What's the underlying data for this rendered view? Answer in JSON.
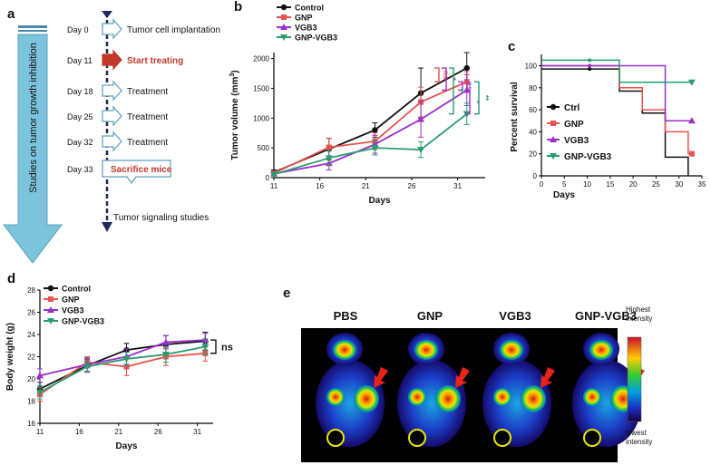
{
  "panels": {
    "a": "a",
    "b": "b",
    "c": "c",
    "d": "d",
    "e": "e"
  },
  "timeline": {
    "arrow_label": "Studies on tumor growth inhibition",
    "events": [
      {
        "day": "Day 0",
        "label": "Tumor cell implantation",
        "highlight": false
      },
      {
        "day": "Day 11",
        "label": "Start treating",
        "highlight": true
      },
      {
        "day": "Day 18",
        "label": "Treatment",
        "highlight": false
      },
      {
        "day": "Day 25",
        "label": "Treatment",
        "highlight": false
      },
      {
        "day": "Day 32",
        "label": "Treatment",
        "highlight": false
      },
      {
        "day": "Day 33",
        "label": "Sacrifice mice",
        "boxed": true
      }
    ],
    "footer": "Tumor signaling studies",
    "colors": {
      "arrow": "#7cc4dc",
      "highlight": "#c0392b",
      "timeline": "#1a2a5a"
    }
  },
  "series_colors": {
    "Control": "#111111",
    "GNP": "#e8524f",
    "VGB3": "#9b2fc9",
    "GNP-VGB3": "#2a9d6f"
  },
  "chart_data": [
    {
      "panel": "b",
      "type": "line",
      "xlabel": "Days",
      "ylabel": "Tumor volume (mm",
      "ylabel_sup": "3",
      "ylabel_close": ")",
      "xticks": [
        11,
        16,
        21,
        26,
        31
      ],
      "yticks": [
        0,
        500,
        1000,
        1500,
        2000
      ],
      "xlim": [
        11,
        34
      ],
      "ylim": [
        0,
        2100
      ],
      "x": [
        11,
        17,
        22,
        27,
        32
      ],
      "series": [
        {
          "name": "Control",
          "values": [
            90,
            480,
            800,
            1420,
            1840
          ],
          "err": [
            40,
            180,
            120,
            420,
            260
          ]
        },
        {
          "name": "GNP",
          "values": [
            75,
            510,
            610,
            1270,
            1610
          ],
          "err": [
            35,
            150,
            140,
            250,
            170
          ]
        },
        {
          "name": "VGB3",
          "values": [
            65,
            240,
            560,
            980,
            1470
          ],
          "err": [
            30,
            110,
            150,
            300,
            260
          ]
        },
        {
          "name": "GNP-VGB3",
          "values": [
            55,
            330,
            500,
            470,
            1070
          ],
          "err": [
            25,
            120,
            120,
            130,
            180
          ]
        }
      ],
      "significance": [
        "ns",
        "*",
        "ns",
        "*",
        "**",
        "**"
      ],
      "legend": "top-left"
    },
    {
      "panel": "c",
      "type": "line",
      "xlabel": "Days",
      "ylabel": "Percent survival",
      "xticks": [
        0,
        5,
        10,
        15,
        20,
        25,
        30,
        35
      ],
      "yticks": [
        0,
        20,
        40,
        60,
        80,
        100
      ],
      "xlim": [
        0,
        35
      ],
      "ylim": [
        0,
        107
      ],
      "series": [
        {
          "name": "Ctrl",
          "steps": [
            [
              0,
              97
            ],
            [
              17,
              77
            ],
            [
              22,
              57
            ],
            [
              27,
              17
            ],
            [
              32,
              0
            ]
          ]
        },
        {
          "name": "GNP",
          "steps": [
            [
              0,
              100
            ],
            [
              17,
              80
            ],
            [
              22,
              60
            ],
            [
              27,
              40
            ],
            [
              32,
              20
            ],
            [
              33,
              20
            ]
          ]
        },
        {
          "name": "VGB3",
          "steps": [
            [
              0,
              100
            ],
            [
              22,
              100
            ],
            [
              27,
              50
            ],
            [
              33,
              50
            ]
          ]
        },
        {
          "name": "GNP-VGB3",
          "steps": [
            [
              0,
              105
            ],
            [
              17,
              85
            ],
            [
              33,
              85
            ]
          ]
        }
      ],
      "legend": "left"
    },
    {
      "panel": "d",
      "type": "line",
      "xlabel": "Days",
      "ylabel": "Body weight (g)",
      "xticks": [
        11,
        16,
        21,
        26,
        31
      ],
      "yticks": [
        16,
        18,
        20,
        22,
        24,
        26,
        28
      ],
      "xlim": [
        11,
        33
      ],
      "ylim": [
        16,
        28
      ],
      "x": [
        11,
        17,
        22,
        27,
        32
      ],
      "series": [
        {
          "name": "Control",
          "values": [
            19.1,
            21.2,
            22.6,
            23.1,
            23.4
          ],
          "err": [
            0.6,
            0.6,
            0.6,
            0.8,
            0.8
          ]
        },
        {
          "name": "GNP",
          "values": [
            18.6,
            21.5,
            21.1,
            22.0,
            22.3
          ],
          "err": [
            0.6,
            0.5,
            0.8,
            0.8,
            0.7
          ]
        },
        {
          "name": "VGB3",
          "values": [
            20.3,
            21.3,
            22.0,
            23.3,
            23.5
          ],
          "err": [
            0.6,
            0.6,
            0.7,
            0.6,
            0.6
          ]
        },
        {
          "name": "GNP-VGB3",
          "values": [
            18.8,
            21.1,
            21.8,
            22.2,
            22.9
          ],
          "err": [
            0.6,
            0.5,
            0.6,
            0.7,
            0.7
          ]
        }
      ],
      "significance": [
        "ns"
      ],
      "legend": "top-left"
    }
  ],
  "imaging": {
    "groups": [
      "PBS",
      "GNP",
      "VGB3",
      "GNP-VGB3"
    ],
    "scale_top": "Highest intensity",
    "scale_bottom": "lowest intensity",
    "colors": {
      "background": "#000000",
      "arrow": "#e8231c"
    }
  }
}
